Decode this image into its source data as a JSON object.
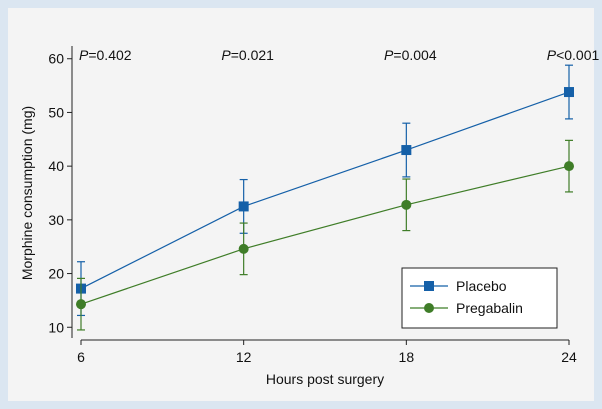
{
  "chart_data": {
    "type": "line",
    "title": "",
    "xlabel": "Hours post surgery",
    "ylabel": "Morphine consumption (mg)",
    "x": [
      6,
      12,
      18,
      24
    ],
    "xlim": [
      6,
      24
    ],
    "ylim": [
      8,
      62
    ],
    "yticks": [
      10,
      20,
      30,
      40,
      50,
      60
    ],
    "xticks": [
      6,
      12,
      18,
      24
    ],
    "grid": false,
    "legend_position": "bottom-right",
    "series": [
      {
        "name": "Placebo",
        "color": "#1560a8",
        "marker": "square",
        "values": [
          17.2,
          32.5,
          43.0,
          53.8
        ],
        "err_low": [
          12.2,
          27.5,
          38.0,
          48.8
        ],
        "err_high": [
          22.2,
          37.5,
          48.0,
          58.8
        ]
      },
      {
        "name": "Pregabalin",
        "color": "#3f7d28",
        "marker": "circle",
        "values": [
          14.3,
          24.6,
          32.8,
          40.0
        ],
        "err_low": [
          9.5,
          19.8,
          28.0,
          35.2
        ],
        "err_high": [
          19.1,
          29.4,
          37.6,
          44.8
        ]
      }
    ],
    "annotations": [
      {
        "p_label": "P",
        "value": "=0.402"
      },
      {
        "p_label": "P",
        "value": "=0.021"
      },
      {
        "p_label": "P",
        "value": "=0.004"
      },
      {
        "p_label": "P",
        "value": "<0.001"
      }
    ]
  }
}
